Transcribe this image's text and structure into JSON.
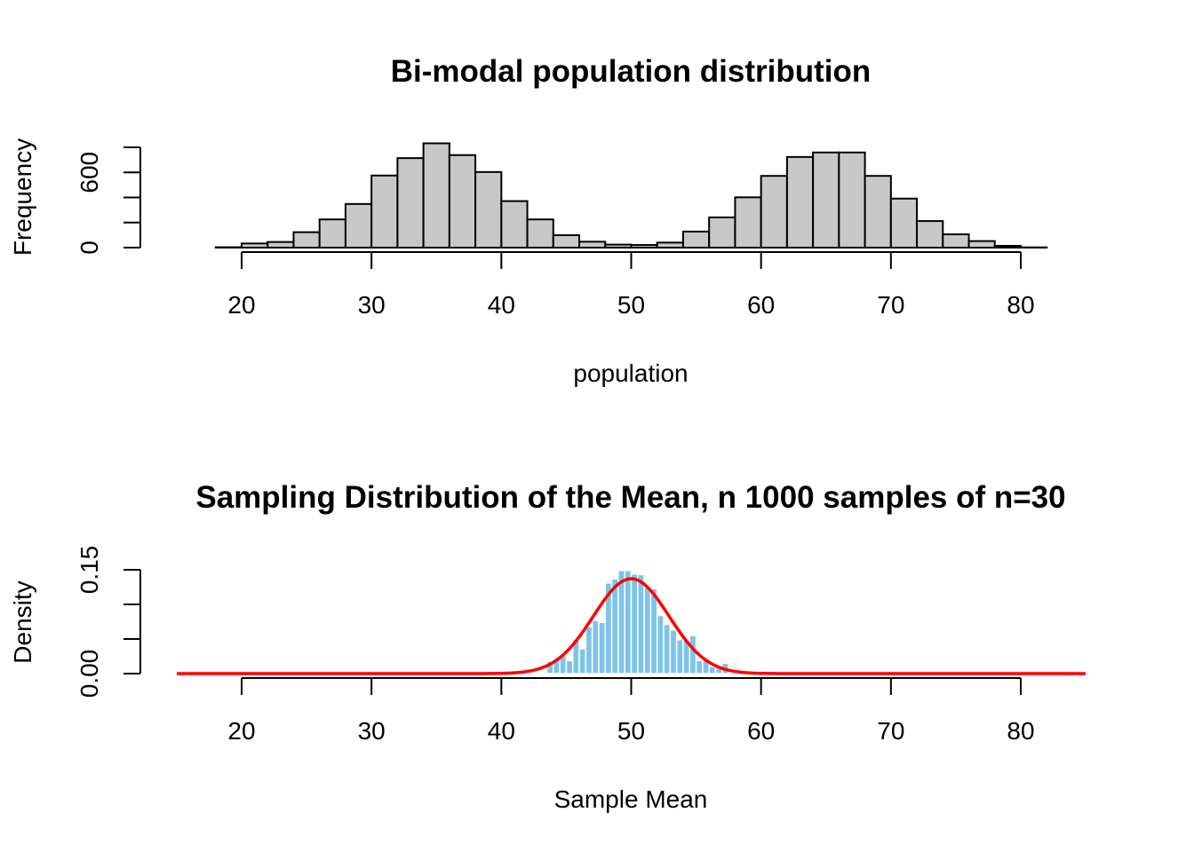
{
  "chart_data": [
    {
      "type": "bar",
      "subtype": "histogram",
      "title": "Bi-modal population distribution",
      "xlabel": "population",
      "ylabel": "Frequency",
      "xlim": [
        18,
        82
      ],
      "ylim": [
        0,
        800
      ],
      "x_ticks": [
        20,
        30,
        40,
        50,
        60,
        70,
        80
      ],
      "x_tick_labels": [
        "20",
        "30",
        "40",
        "50",
        "60",
        "70",
        "80"
      ],
      "y_ticks": [
        0,
        200,
        400,
        600,
        800
      ],
      "y_tick_labels": [
        "0",
        "",
        "",
        "600",
        ""
      ],
      "bin_width": 2,
      "bin_start": 18,
      "bar_fill": "#c8c8c8",
      "bar_border": "#000000",
      "values": [
        3,
        33,
        45,
        123,
        225,
        348,
        575,
        714,
        832,
        738,
        603,
        371,
        225,
        99,
        47,
        24,
        21,
        40,
        128,
        241,
        401,
        572,
        723,
        759,
        759,
        572,
        391,
        212,
        106,
        52,
        14,
        2
      ],
      "grid": false
    },
    {
      "type": "bar",
      "subtype": "histogram-with-density-curve",
      "title": "Sampling Distribution of the Mean, n 1000 samples of n=30",
      "xlabel": "Sample Mean",
      "ylabel": "Density",
      "xlim": [
        15,
        85
      ],
      "ylim": [
        0,
        0.15
      ],
      "x_ticks": [
        20,
        30,
        40,
        50,
        60,
        70,
        80
      ],
      "x_tick_labels": [
        "20",
        "30",
        "40",
        "50",
        "60",
        "70",
        "80"
      ],
      "y_ticks": [
        0,
        0.05,
        0.1,
        0.15
      ],
      "y_tick_labels": [
        "0.00",
        "",
        "",
        "0.15"
      ],
      "bin_width": 0.5,
      "bin_start": 43.5,
      "bar_fill": "#7ec4e8",
      "bar_border": "#ffffff",
      "values": [
        0.018,
        0.022,
        0.026,
        0.019,
        0.05,
        0.036,
        0.068,
        0.077,
        0.074,
        0.131,
        0.137,
        0.149,
        0.149,
        0.144,
        0.143,
        0.125,
        0.123,
        0.084,
        0.071,
        0.063,
        0.049,
        0.049,
        0.055,
        0.019,
        0.022,
        0.01,
        0.009,
        0.015
      ],
      "curve": {
        "name": "normal density",
        "color": "#ff0000",
        "mean": 50.0,
        "sd": 2.91,
        "x_range": [
          15,
          85
        ]
      },
      "grid": false
    }
  ]
}
